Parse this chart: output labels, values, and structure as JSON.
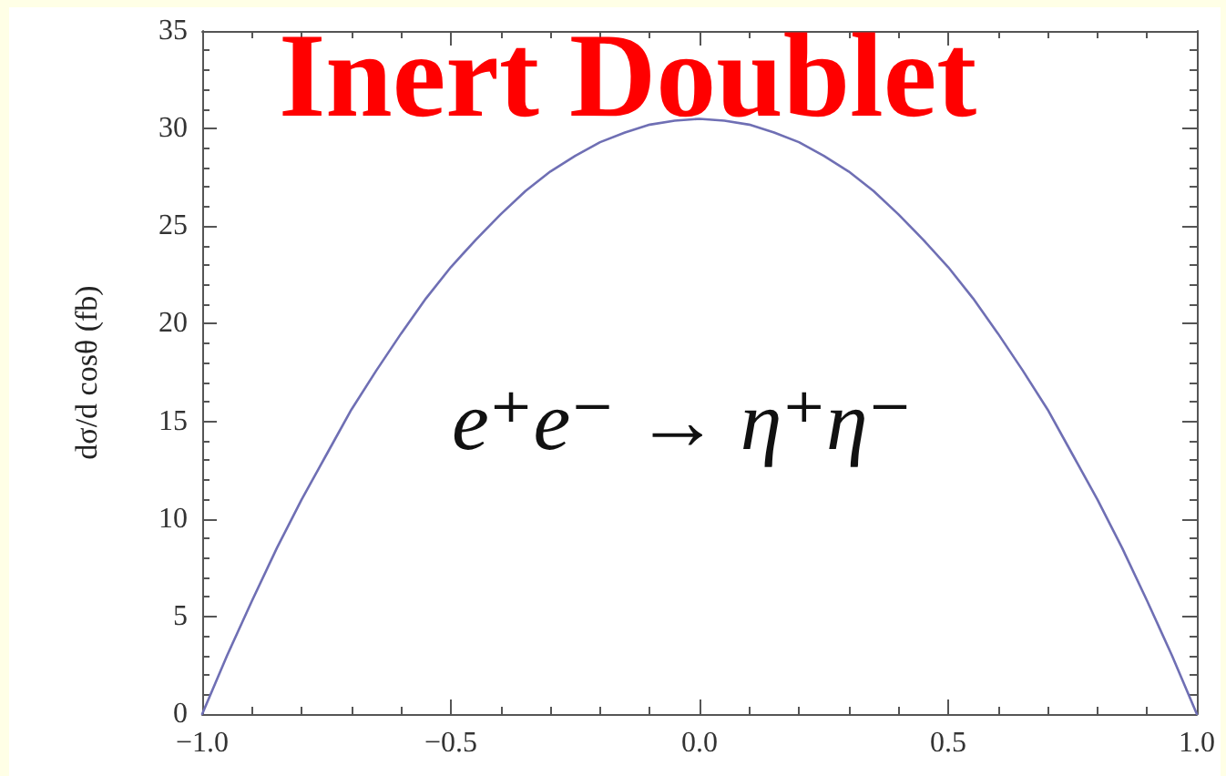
{
  "chart_data": {
    "type": "line",
    "title": "Inert Doublet",
    "ylabel": "dσ/d cosθ (fb)",
    "annotations": [
      "e⁺e⁻ → η⁺η⁻"
    ],
    "x": [
      -1,
      -0.95,
      -0.9,
      -0.85,
      -0.8,
      -0.75,
      -0.7,
      -0.65,
      -0.6,
      -0.55,
      -0.5,
      -0.45,
      -0.4,
      -0.35,
      -0.3,
      -0.25,
      -0.2,
      -0.15,
      -0.1,
      -0.05,
      0,
      0.05,
      0.1,
      0.15,
      0.2,
      0.25,
      0.3,
      0.35,
      0.4,
      0.45,
      0.5,
      0.55,
      0.6,
      0.65,
      0.7,
      0.75,
      0.8,
      0.85,
      0.9,
      0.95,
      1
    ],
    "series": [
      {
        "color": "#6f6fb4",
        "values": [
          0,
          3.0,
          5.8,
          8.5,
          11.0,
          13.3,
          15.6,
          17.6,
          19.5,
          21.3,
          22.9,
          24.3,
          25.6,
          26.8,
          27.8,
          28.6,
          29.3,
          29.8,
          30.2,
          30.4,
          30.5,
          30.4,
          30.2,
          29.8,
          29.3,
          28.6,
          27.8,
          26.8,
          25.6,
          24.3,
          22.9,
          21.3,
          19.5,
          17.6,
          15.6,
          13.3,
          11.0,
          8.5,
          5.8,
          3.0,
          0
        ]
      }
    ],
    "xlim": [
      -1,
      1
    ],
    "xticks": [
      {
        "value": -1,
        "label": "−1.0"
      },
      {
        "value": -0.9,
        "label": null
      },
      {
        "value": -0.8,
        "label": null
      },
      {
        "value": -0.7,
        "label": null
      },
      {
        "value": -0.6,
        "label": null
      },
      {
        "value": -0.5,
        "label": "−0.5"
      },
      {
        "value": -0.4,
        "label": null
      },
      {
        "value": -0.3,
        "label": null
      },
      {
        "value": -0.2,
        "label": null
      },
      {
        "value": -0.1,
        "label": null
      },
      {
        "value": 0,
        "label": "0.0"
      },
      {
        "value": 0.1,
        "label": null
      },
      {
        "value": 0.2,
        "label": null
      },
      {
        "value": 0.3,
        "label": null
      },
      {
        "value": 0.4,
        "label": null
      },
      0.5,
      {
        "value": 0.6,
        "label": null
      },
      {
        "value": 0.7,
        "label": null
      },
      {
        "value": 0.8,
        "label": null
      },
      {
        "value": 0.9,
        "label": null
      },
      {
        "value": 1,
        "label": "1.0"
      }
    ],
    "ylim": [
      0,
      35
    ],
    "yticks": [
      0,
      {
        "value": 1,
        "label": null
      },
      {
        "value": 2,
        "label": null
      },
      {
        "value": 3,
        "label": null
      },
      {
        "value": 4,
        "label": null
      },
      5,
      {
        "value": 6,
        "label": null
      },
      {
        "value": 7,
        "label": null
      },
      {
        "value": 8,
        "label": null
      },
      {
        "value": 9,
        "label": null
      },
      10,
      {
        "value": 11,
        "label": null
      },
      {
        "value": 12,
        "label": null
      },
      {
        "value": 13,
        "label": null
      },
      {
        "value": 14,
        "label": null
      },
      15,
      {
        "value": 16,
        "label": null
      },
      {
        "value": 17,
        "label": null
      },
      {
        "value": 18,
        "label": null
      },
      {
        "value": 19,
        "label": null
      },
      20,
      {
        "value": 21,
        "label": null
      },
      {
        "value": 22,
        "label": null
      },
      {
        "value": 23,
        "label": null
      },
      {
        "value": 24,
        "label": null
      },
      25,
      {
        "value": 26,
        "label": null
      },
      {
        "value": 27,
        "label": null
      },
      {
        "value": 28,
        "label": null
      },
      {
        "value": 29,
        "label": null
      },
      30,
      {
        "value": 31,
        "label": null
      },
      {
        "value": 32,
        "label": null
      },
      {
        "value": 33,
        "label": null
      },
      {
        "value": 34,
        "label": null
      },
      35
    ],
    "grid": false,
    "marker": "none",
    "line_style": "solid"
  }
}
